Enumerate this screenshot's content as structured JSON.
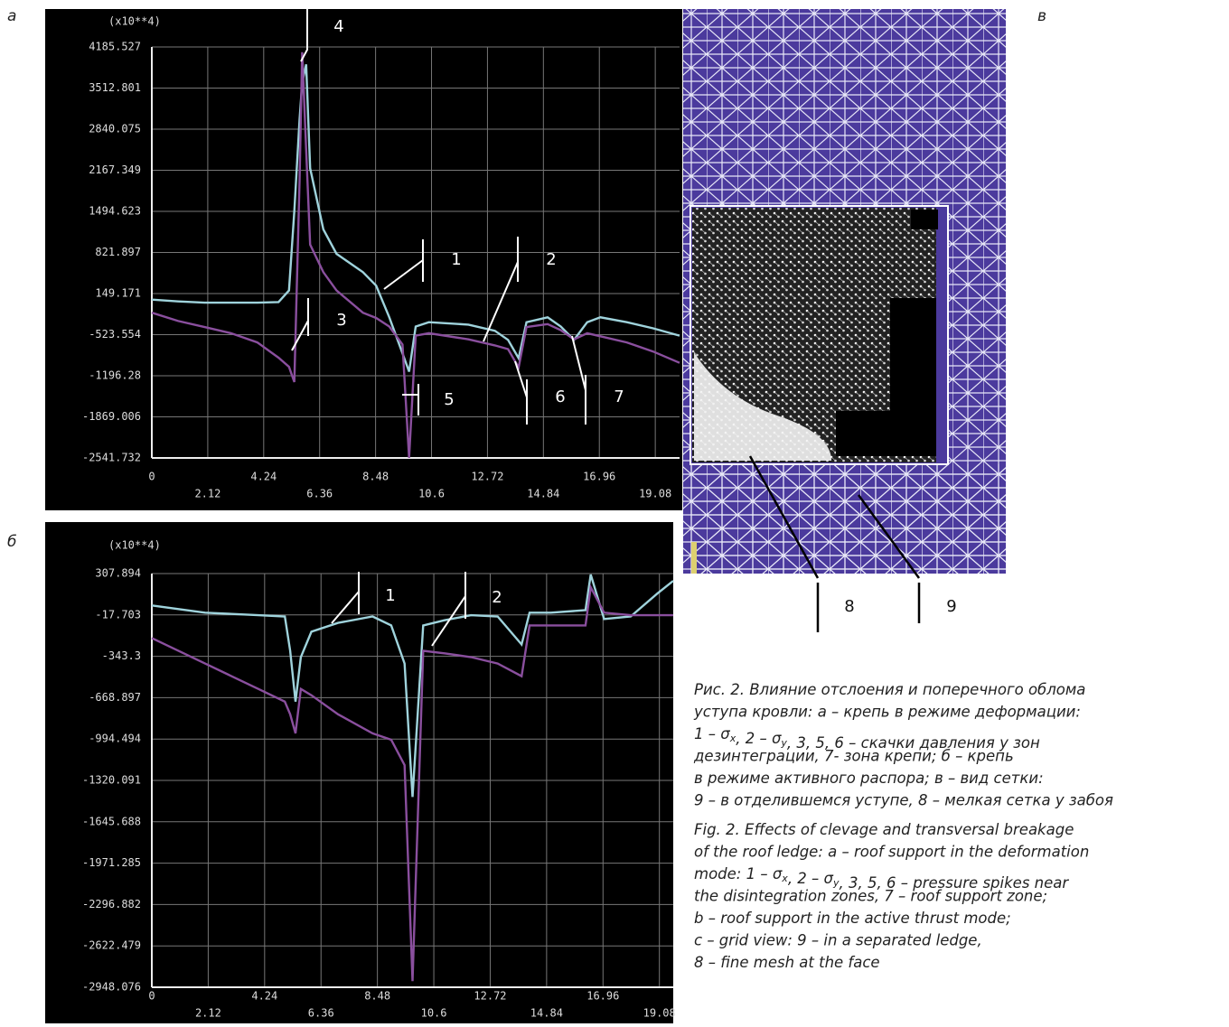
{
  "chart_data": [
    {
      "type": "line",
      "panel_label": "а",
      "y_unit_label": "(x10**4)",
      "x": [
        0,
        1,
        2,
        3,
        4,
        4.8,
        5.2,
        5.4,
        5.6,
        5.7,
        5.85,
        6,
        6.5,
        7,
        8,
        8.5,
        9,
        9.5,
        9.75,
        10,
        10.5,
        12,
        13,
        13.5,
        13.9,
        14.2,
        15,
        15.5,
        16,
        16.5,
        17,
        18,
        19,
        20
      ],
      "series": [
        {
          "color": "#9fd3dc",
          "values": [
            50,
            20,
            0,
            0,
            0,
            10,
            200,
            1500,
            3000,
            3600,
            3900,
            2200,
            1200,
            800,
            500,
            280,
            -240,
            -830,
            -1130,
            -390,
            -320,
            -360,
            -460,
            -610,
            -910,
            -320,
            -240,
            -390,
            -610,
            -320,
            -240,
            -320,
            -420,
            -540
          ]
        },
        {
          "color": "#8a4f9e",
          "values": [
            -165,
            -300,
            -400,
            -500,
            -650,
            -900,
            -1050,
            -1300,
            2000,
            4100,
            2500,
            950,
            500,
            200,
            -165,
            -250,
            -390,
            -685,
            -2540,
            -540,
            -500,
            -600,
            -700,
            -760,
            -1060,
            -400,
            -350,
            -450,
            -600,
            -500,
            -550,
            -650,
            -800,
            -985
          ]
        }
      ],
      "xlim": [
        0,
        20
      ],
      "ylim": [
        -2541.732,
        4185.527
      ],
      "xticks": [
        0,
        2.12,
        4.24,
        6.36,
        8.48,
        10.6,
        12.72,
        14.84,
        16.96,
        19.08
      ],
      "yticks": [
        4185.527,
        3512.801,
        2840.075,
        2167.349,
        1494.623,
        821.897,
        149.171,
        -523.554,
        -1196.28,
        -1869.006,
        -2541.732
      ],
      "grid": true,
      "annotations": [
        "4",
        "1",
        "3",
        "2",
        "5",
        "6",
        "7"
      ]
    },
    {
      "type": "line",
      "panel_label": "б",
      "y_unit_label": "(x10**4)",
      "x": [
        0,
        2,
        4,
        5,
        5.2,
        5.4,
        5.6,
        6,
        7,
        8.3,
        9,
        9.5,
        9.8,
        10.2,
        11,
        12,
        13,
        13.9,
        14.2,
        15,
        16.3,
        16.5,
        17,
        18,
        19,
        19.6
      ],
      "series": [
        {
          "color": "#9fd3dc",
          "values": [
            57,
            0,
            -20,
            -30,
            -300,
            -700,
            -350,
            -150,
            -80,
            -30,
            -100,
            -400,
            -1450,
            -100,
            -60,
            -20,
            -30,
            -250,
            0,
            0,
            20,
            300,
            -50,
            -30,
            150,
            250
          ]
        },
        {
          "color": "#8a4f9e",
          "values": [
            -200,
            -400,
            -600,
            -700,
            -800,
            -950,
            -600,
            -650,
            -800,
            -950,
            -1000,
            -1200,
            -2900,
            -300,
            -320,
            -350,
            -400,
            -500,
            -100,
            -100,
            -100,
            200,
            0,
            -20,
            -20,
            -20
          ]
        }
      ],
      "xlim": [
        0,
        19.6
      ],
      "ylim": [
        -2948.076,
        307.894
      ],
      "xticks": [
        0,
        2.12,
        4.24,
        6.36,
        8.48,
        10.6,
        12.72,
        14.84,
        16.96,
        19.08
      ],
      "yticks": [
        307.894,
        -17.703,
        -343.3,
        -668.897,
        -994.494,
        -1320.091,
        -1645.688,
        -1971.285,
        -2296.882,
        -2622.479,
        -2948.076
      ],
      "grid": true,
      "annotations": [
        "1",
        "2"
      ]
    }
  ],
  "mesh_panel": {
    "label": "в",
    "callouts": [
      "8",
      "9"
    ]
  },
  "caption": {
    "ru": [
      [
        "Рис. 2. Влияние отслоения и поперечного облома"
      ],
      [
        "уступа кровли: а – крепь в режиме деформации:"
      ],
      [
        "1 – σ",
        {
          "sub": "x"
        },
        ", 2 – σ",
        {
          "sub": "y"
        },
        ", 3, 5, 6 – скачки давления у зон"
      ],
      [
        "дезинтеграции, 7- зона крепи; б – крепь"
      ],
      [
        "в режиме активного распора; в – вид сетки:"
      ],
      [
        "9 – в отделившемся уступе, 8 – мелкая сетка у забоя"
      ]
    ],
    "en": [
      [
        "Fig. 2. Effects of clevage and transversal breakage"
      ],
      [
        "of the roof ledge: a – roof support in the deformation"
      ],
      [
        "mode: 1 – σ",
        {
          "sub": "x"
        },
        ", 2 – σ",
        {
          "sub": "y"
        },
        ", 3, 5, 6 – pressure spikes near"
      ],
      [
        "the disintegration zones, 7 – roof support zone;"
      ],
      [
        "b – roof support in the active thrust mode;"
      ],
      [
        "c – grid view: 9 – in a separated ledge,"
      ],
      [
        "8 – fine mesh at the face"
      ]
    ]
  }
}
